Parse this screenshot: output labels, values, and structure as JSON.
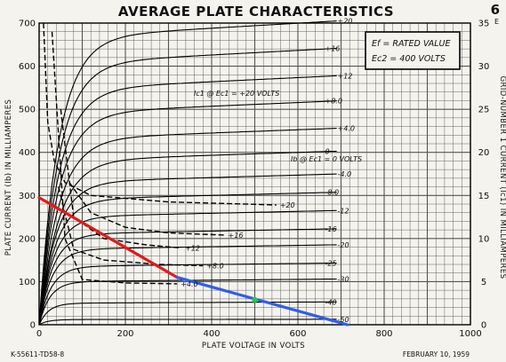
{
  "page": {
    "title": "AVERAGE PLATE CHARACTERISTICS",
    "corner_mark": "6",
    "corner_mark_sub": "E",
    "footer_left": "K-55611-TD58-8",
    "footer_right": "FEBRUARY 10, 1959"
  },
  "legend": {
    "line1": "Ef = RATED VALUE",
    "line2": "Ec2 = 400 VOLTS"
  },
  "colors": {
    "grid": "#555555",
    "curve": "#000000",
    "load_line_red": "#e21a1a",
    "load_line_blue": "#2f5fe8",
    "operating_point": "#22cc44",
    "background": "#f4f3ee"
  },
  "chart_data": {
    "type": "line",
    "title": "AVERAGE PLATE CHARACTERISTICS",
    "xlabel": "PLATE VOLTAGE IN VOLTS",
    "ylabel": "PLATE CURRENT (Ib) IN MILLIAMPERES",
    "y2label": "GRID-NUMBER 1 CURRENT (Ic1) IN MILLIAMPERES",
    "xlim": [
      0,
      1000
    ],
    "ylim": [
      0,
      700
    ],
    "y2lim": [
      0,
      35
    ],
    "x_ticks": [
      0,
      200,
      400,
      600,
      800,
      1000
    ],
    "y_ticks": [
      0,
      100,
      200,
      300,
      400,
      500,
      600,
      700
    ],
    "y2_ticks": [
      0,
      5,
      10,
      15,
      20,
      25,
      30,
      35
    ],
    "grid": true,
    "plate_curves": [
      {
        "name": "+20",
        "sat": 665,
        "knee": 45
      },
      {
        "name": "+16",
        "sat": 605,
        "knee": 45
      },
      {
        "name": "+12",
        "sat": 545,
        "knee": 45
      },
      {
        "name": "+8.0",
        "sat": 490,
        "knee": 45
      },
      {
        "name": "+4.0",
        "sat": 430,
        "knee": 45
      },
      {
        "name": "0",
        "sat": 380,
        "knee": 45
      },
      {
        "name": "-4.0",
        "sat": 330,
        "knee": 40
      },
      {
        "name": "-8.0",
        "sat": 290,
        "knee": 38
      },
      {
        "name": "-12",
        "sat": 250,
        "knee": 35
      },
      {
        "name": "-16",
        "sat": 210,
        "knee": 32
      },
      {
        "name": "-20",
        "sat": 175,
        "knee": 30
      },
      {
        "name": "-25",
        "sat": 135,
        "knee": 28
      },
      {
        "name": "-30",
        "sat": 100,
        "knee": 25
      },
      {
        "name": "-40",
        "sat": 50,
        "knee": 22
      },
      {
        "name": "-50",
        "sat": 12,
        "knee": 20
      }
    ],
    "grid_current_curves": [
      {
        "name": "+20",
        "points": [
          [
            10,
            700
          ],
          [
            20,
            470
          ],
          [
            35,
            380
          ],
          [
            60,
            330
          ],
          [
            120,
            300
          ],
          [
            300,
            285
          ],
          [
            550,
            278
          ]
        ]
      },
      {
        "name": "+16",
        "points": [
          [
            70,
            330
          ],
          [
            120,
            260
          ],
          [
            200,
            226
          ],
          [
            300,
            213
          ],
          [
            430,
            208
          ]
        ]
      },
      {
        "name": "+12",
        "points": [
          [
            50,
            500
          ],
          [
            80,
            250
          ],
          [
            150,
            200
          ],
          [
            250,
            185
          ],
          [
            330,
            178
          ]
        ]
      },
      {
        "name": "+8.0",
        "points": [
          [
            45,
            320
          ],
          [
            80,
            175
          ],
          [
            150,
            150
          ],
          [
            280,
            140
          ],
          [
            380,
            137
          ]
        ]
      },
      {
        "name": "+4.0",
        "points": [
          [
            30,
            680
          ],
          [
            60,
            200
          ],
          [
            100,
            105
          ],
          [
            200,
            97
          ],
          [
            320,
            95
          ]
        ]
      }
    ],
    "grid_current_labels": [
      {
        "text": "Ic1 @ Ec1 = +20 VOLTS"
      },
      {
        "text": "Ib @ Ec1 = 0 VOLTS"
      }
    ],
    "load_lines": [
      {
        "name": "red",
        "points": [
          [
            0,
            295
          ],
          [
            320,
            110
          ]
        ]
      },
      {
        "name": "blue",
        "points": [
          [
            320,
            110
          ],
          [
            715,
            0
          ]
        ]
      }
    ],
    "operating_point": {
      "x": 500,
      "y": 58
    }
  }
}
